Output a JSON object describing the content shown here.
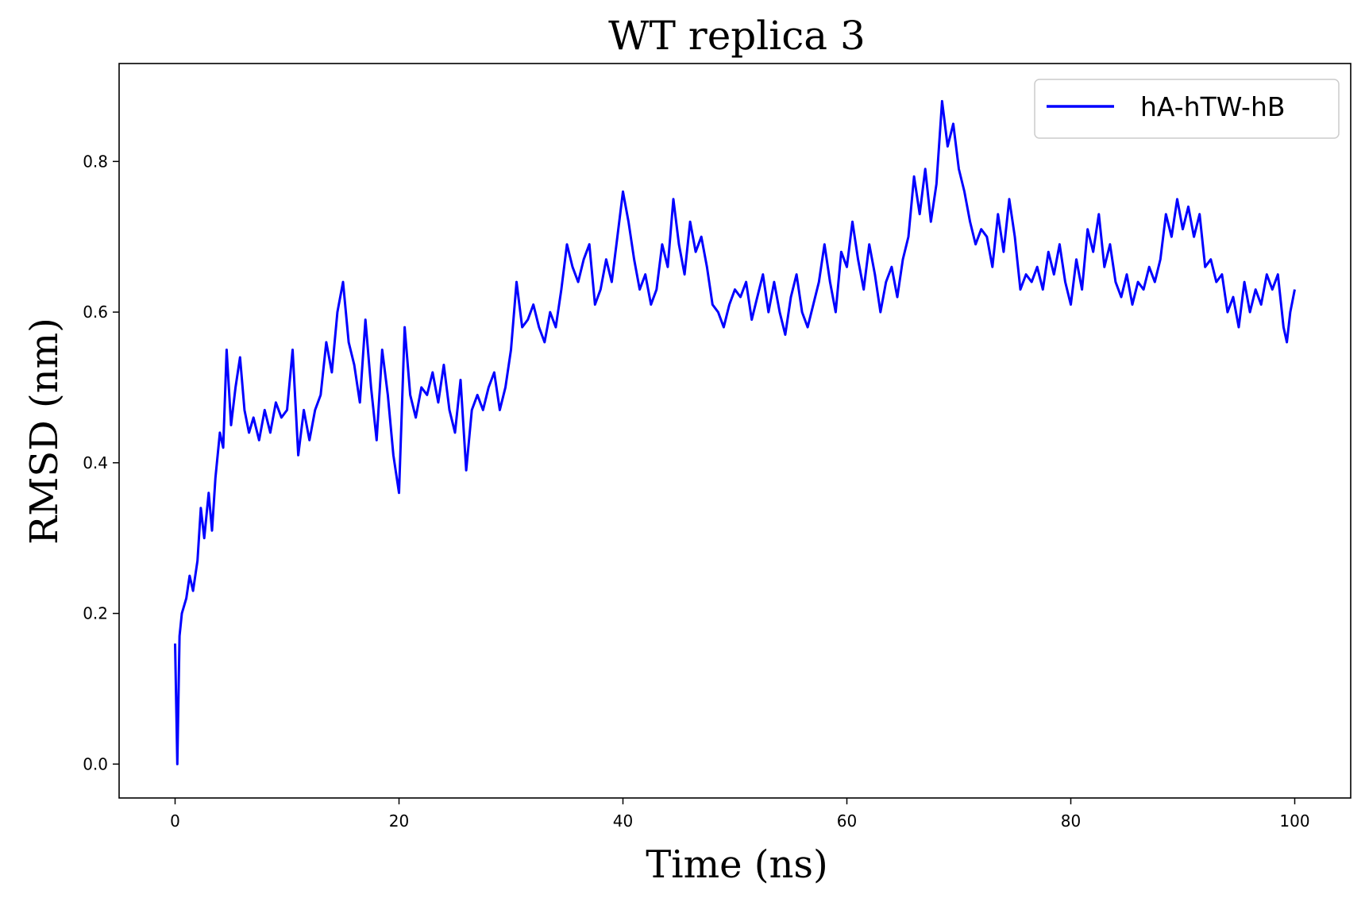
{
  "chart_data": {
    "type": "line",
    "title": "WT replica 3",
    "xlabel": "Time (ns)",
    "ylabel": "RMSD (nm)",
    "xlim": [
      -5,
      105
    ],
    "ylim": [
      -0.045,
      0.93
    ],
    "xticks": [
      0,
      20,
      40,
      60,
      80,
      100
    ],
    "xtick_labels": [
      "0",
      "20",
      "40",
      "60",
      "80",
      "100"
    ],
    "yticks": [
      0.0,
      0.2,
      0.4,
      0.6,
      0.8
    ],
    "ytick_labels": [
      "0.0",
      "0.2",
      "0.4",
      "0.6",
      "0.8"
    ],
    "grid": false,
    "legend": "top-right",
    "series": [
      {
        "name": "hA-hTW-hB",
        "color": "#0000ff",
        "points": [
          [
            0,
            0.16
          ],
          [
            0.2,
            0.0
          ],
          [
            0.4,
            0.17
          ],
          [
            0.6,
            0.2
          ],
          [
            1,
            0.22
          ],
          [
            1.3,
            0.25
          ],
          [
            1.6,
            0.23
          ],
          [
            2,
            0.27
          ],
          [
            2.3,
            0.34
          ],
          [
            2.6,
            0.3
          ],
          [
            3,
            0.36
          ],
          [
            3.3,
            0.31
          ],
          [
            3.6,
            0.38
          ],
          [
            4,
            0.44
          ],
          [
            4.3,
            0.42
          ],
          [
            4.6,
            0.55
          ],
          [
            5,
            0.45
          ],
          [
            5.4,
            0.5
          ],
          [
            5.8,
            0.54
          ],
          [
            6.2,
            0.47
          ],
          [
            6.6,
            0.44
          ],
          [
            7,
            0.46
          ],
          [
            7.5,
            0.43
          ],
          [
            8,
            0.47
          ],
          [
            8.5,
            0.44
          ],
          [
            9,
            0.48
          ],
          [
            9.5,
            0.46
          ],
          [
            10,
            0.47
          ],
          [
            10.5,
            0.55
          ],
          [
            11,
            0.41
          ],
          [
            11.5,
            0.47
          ],
          [
            12,
            0.43
          ],
          [
            12.5,
            0.47
          ],
          [
            13,
            0.49
          ],
          [
            13.5,
            0.56
          ],
          [
            14,
            0.52
          ],
          [
            14.5,
            0.6
          ],
          [
            15,
            0.64
          ],
          [
            15.5,
            0.56
          ],
          [
            16,
            0.53
          ],
          [
            16.5,
            0.48
          ],
          [
            17,
            0.59
          ],
          [
            17.5,
            0.5
          ],
          [
            18,
            0.43
          ],
          [
            18.5,
            0.55
          ],
          [
            19,
            0.49
          ],
          [
            19.5,
            0.41
          ],
          [
            20,
            0.36
          ],
          [
            20.5,
            0.58
          ],
          [
            21,
            0.49
          ],
          [
            21.5,
            0.46
          ],
          [
            22,
            0.5
          ],
          [
            22.5,
            0.49
          ],
          [
            23,
            0.52
          ],
          [
            23.5,
            0.48
          ],
          [
            24,
            0.53
          ],
          [
            24.5,
            0.47
          ],
          [
            25,
            0.44
          ],
          [
            25.5,
            0.51
          ],
          [
            26,
            0.39
          ],
          [
            26.5,
            0.47
          ],
          [
            27,
            0.49
          ],
          [
            27.5,
            0.47
          ],
          [
            28,
            0.5
          ],
          [
            28.5,
            0.52
          ],
          [
            29,
            0.47
          ],
          [
            29.5,
            0.5
          ],
          [
            30,
            0.55
          ],
          [
            30.5,
            0.64
          ],
          [
            31,
            0.58
          ],
          [
            31.5,
            0.59
          ],
          [
            32,
            0.61
          ],
          [
            32.5,
            0.58
          ],
          [
            33,
            0.56
          ],
          [
            33.5,
            0.6
          ],
          [
            34,
            0.58
          ],
          [
            34.5,
            0.63
          ],
          [
            35,
            0.69
          ],
          [
            35.5,
            0.66
          ],
          [
            36,
            0.64
          ],
          [
            36.5,
            0.67
          ],
          [
            37,
            0.69
          ],
          [
            37.5,
            0.61
          ],
          [
            38,
            0.63
          ],
          [
            38.5,
            0.67
          ],
          [
            39,
            0.64
          ],
          [
            39.5,
            0.7
          ],
          [
            40,
            0.76
          ],
          [
            40.5,
            0.72
          ],
          [
            41,
            0.67
          ],
          [
            41.5,
            0.63
          ],
          [
            42,
            0.65
          ],
          [
            42.5,
            0.61
          ],
          [
            43,
            0.63
          ],
          [
            43.5,
            0.69
          ],
          [
            44,
            0.66
          ],
          [
            44.5,
            0.75
          ],
          [
            45,
            0.69
          ],
          [
            45.5,
            0.65
          ],
          [
            46,
            0.72
          ],
          [
            46.5,
            0.68
          ],
          [
            47,
            0.7
          ],
          [
            47.5,
            0.66
          ],
          [
            48,
            0.61
          ],
          [
            48.5,
            0.6
          ],
          [
            49,
            0.58
          ],
          [
            49.5,
            0.61
          ],
          [
            50,
            0.63
          ],
          [
            50.5,
            0.62
          ],
          [
            51,
            0.64
          ],
          [
            51.5,
            0.59
          ],
          [
            52,
            0.62
          ],
          [
            52.5,
            0.65
          ],
          [
            53,
            0.6
          ],
          [
            53.5,
            0.64
          ],
          [
            54,
            0.6
          ],
          [
            54.5,
            0.57
          ],
          [
            55,
            0.62
          ],
          [
            55.5,
            0.65
          ],
          [
            56,
            0.6
          ],
          [
            56.5,
            0.58
          ],
          [
            57,
            0.61
          ],
          [
            57.5,
            0.64
          ],
          [
            58,
            0.69
          ],
          [
            58.5,
            0.64
          ],
          [
            59,
            0.6
          ],
          [
            59.5,
            0.68
          ],
          [
            60,
            0.66
          ],
          [
            60.5,
            0.72
          ],
          [
            61,
            0.67
          ],
          [
            61.5,
            0.63
          ],
          [
            62,
            0.69
          ],
          [
            62.5,
            0.65
          ],
          [
            63,
            0.6
          ],
          [
            63.5,
            0.64
          ],
          [
            64,
            0.66
          ],
          [
            64.5,
            0.62
          ],
          [
            65,
            0.67
          ],
          [
            65.5,
            0.7
          ],
          [
            66,
            0.78
          ],
          [
            66.5,
            0.73
          ],
          [
            67,
            0.79
          ],
          [
            67.5,
            0.72
          ],
          [
            68,
            0.77
          ],
          [
            68.5,
            0.88
          ],
          [
            69,
            0.82
          ],
          [
            69.5,
            0.85
          ],
          [
            70,
            0.79
          ],
          [
            70.5,
            0.76
          ],
          [
            71,
            0.72
          ],
          [
            71.5,
            0.69
          ],
          [
            72,
            0.71
          ],
          [
            72.5,
            0.7
          ],
          [
            73,
            0.66
          ],
          [
            73.5,
            0.73
          ],
          [
            74,
            0.68
          ],
          [
            74.5,
            0.75
          ],
          [
            75,
            0.7
          ],
          [
            75.5,
            0.63
          ],
          [
            76,
            0.65
          ],
          [
            76.5,
            0.64
          ],
          [
            77,
            0.66
          ],
          [
            77.5,
            0.63
          ],
          [
            78,
            0.68
          ],
          [
            78.5,
            0.65
          ],
          [
            79,
            0.69
          ],
          [
            79.5,
            0.64
          ],
          [
            80,
            0.61
          ],
          [
            80.5,
            0.67
          ],
          [
            81,
            0.63
          ],
          [
            81.5,
            0.71
          ],
          [
            82,
            0.68
          ],
          [
            82.5,
            0.73
          ],
          [
            83,
            0.66
          ],
          [
            83.5,
            0.69
          ],
          [
            84,
            0.64
          ],
          [
            84.5,
            0.62
          ],
          [
            85,
            0.65
          ],
          [
            85.5,
            0.61
          ],
          [
            86,
            0.64
          ],
          [
            86.5,
            0.63
          ],
          [
            87,
            0.66
          ],
          [
            87.5,
            0.64
          ],
          [
            88,
            0.67
          ],
          [
            88.5,
            0.73
          ],
          [
            89,
            0.7
          ],
          [
            89.5,
            0.75
          ],
          [
            90,
            0.71
          ],
          [
            90.5,
            0.74
          ],
          [
            91,
            0.7
          ],
          [
            91.5,
            0.73
          ],
          [
            92,
            0.66
          ],
          [
            92.5,
            0.67
          ],
          [
            93,
            0.64
          ],
          [
            93.5,
            0.65
          ],
          [
            94,
            0.6
          ],
          [
            94.5,
            0.62
          ],
          [
            95,
            0.58
          ],
          [
            95.5,
            0.64
          ],
          [
            96,
            0.6
          ],
          [
            96.5,
            0.63
          ],
          [
            97,
            0.61
          ],
          [
            97.5,
            0.65
          ],
          [
            98,
            0.63
          ],
          [
            98.5,
            0.65
          ],
          [
            99,
            0.58
          ],
          [
            99.3,
            0.56
          ],
          [
            99.6,
            0.6
          ],
          [
            100,
            0.63
          ]
        ]
      }
    ]
  }
}
